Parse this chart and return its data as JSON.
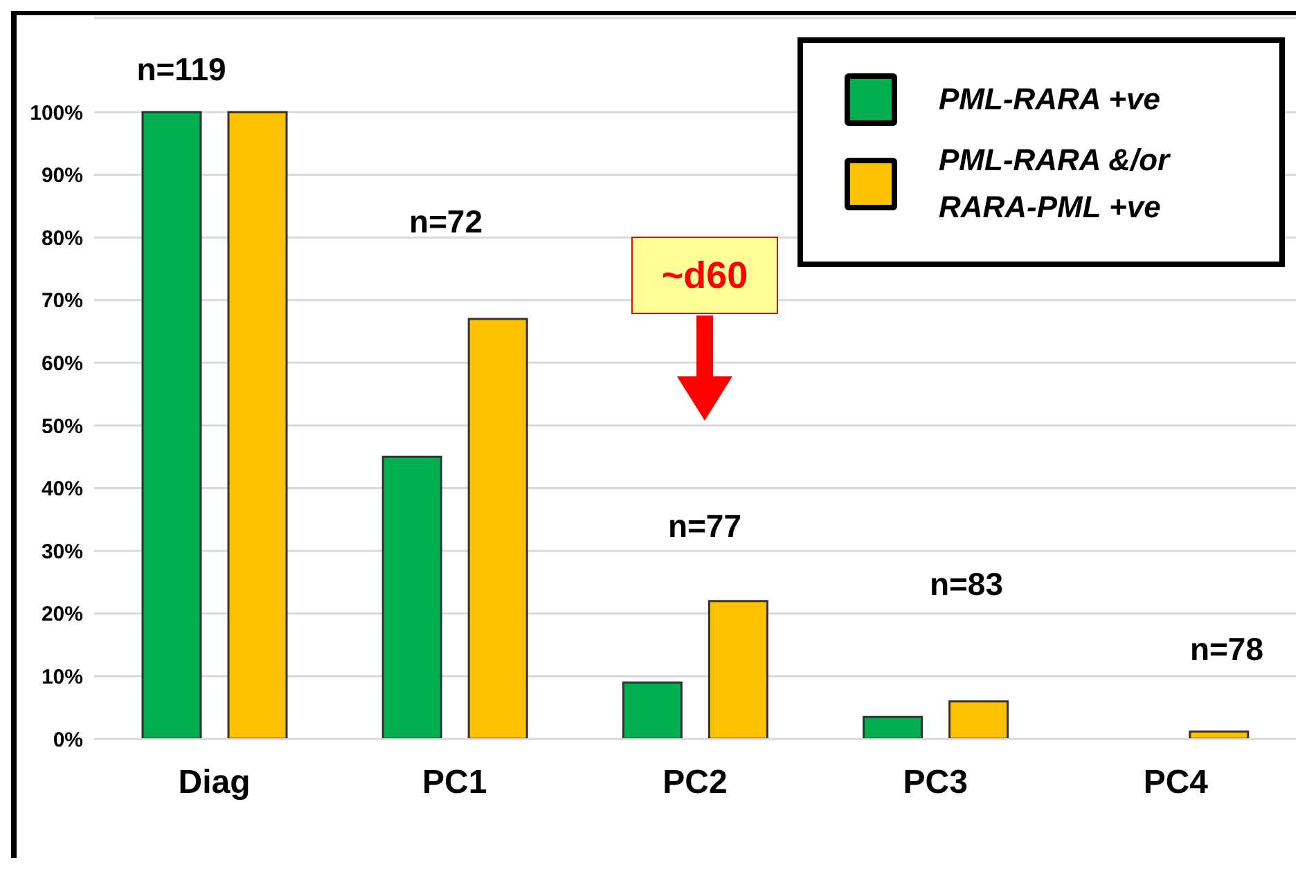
{
  "chart_data": {
    "type": "bar",
    "categories": [
      "Diag",
      "PC1",
      "PC2",
      "PC3",
      "PC4"
    ],
    "series": [
      {
        "name": "PML-RARA +ve",
        "color": "#00b050",
        "values": [
          100,
          45,
          9,
          3.5,
          0
        ]
      },
      {
        "name": "PML-RARA &/or RARA-PML +ve",
        "color": "#ffc000",
        "values": [
          100,
          67,
          22,
          6,
          1.2
        ]
      }
    ],
    "ylim": [
      0,
      115
    ],
    "yticks": [
      {
        "value": 0,
        "label": "0%"
      },
      {
        "value": 10,
        "label": "10%"
      },
      {
        "value": 20,
        "label": "20%"
      },
      {
        "value": 30,
        "label": "30%"
      },
      {
        "value": 40,
        "label": "40%"
      },
      {
        "value": 50,
        "label": "50%"
      },
      {
        "value": 60,
        "label": "60%"
      },
      {
        "value": 70,
        "label": "70%"
      },
      {
        "value": 80,
        "label": "80%"
      },
      {
        "value": 90,
        "label": "90%"
      },
      {
        "value": 100,
        "label": "100%"
      }
    ],
    "annotations": [
      "n=119",
      "n=72",
      "~d60",
      "n=77",
      "n=83",
      "n=78"
    ],
    "grid": "y",
    "legend": "top right"
  }
}
